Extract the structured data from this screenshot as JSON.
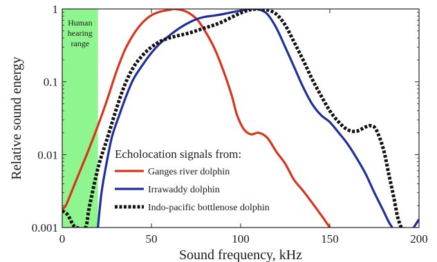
{
  "chart_data": {
    "type": "line",
    "xlabel": "Sound frequency, kHz",
    "ylabel": "Relative sound energy",
    "xlim": [
      0,
      200
    ],
    "ylim": [
      0.001,
      1
    ],
    "yscale": "log",
    "grid": false,
    "x_ticks": [
      "0",
      "50",
      "100",
      "150",
      "200"
    ],
    "y_ticks": [
      "0.001",
      "0.01",
      "0.1",
      "1"
    ],
    "legend_title": "Echolocation signals from:",
    "legend_position": "lower-left",
    "hearing_band": {
      "label": "Human hearing range",
      "x_range": [
        0,
        20
      ],
      "color": "#8ff58f"
    },
    "series": [
      {
        "name": "Ganges river dolphin",
        "color": "#d8351b",
        "style": "solid",
        "points": [
          [
            0,
            0.0018
          ],
          [
            2,
            0.002
          ],
          [
            5,
            0.003
          ],
          [
            10,
            0.006
          ],
          [
            15,
            0.012
          ],
          [
            20,
            0.025
          ],
          [
            25,
            0.055
          ],
          [
            30,
            0.13
          ],
          [
            35,
            0.27
          ],
          [
            40,
            0.45
          ],
          [
            45,
            0.65
          ],
          [
            50,
            0.82
          ],
          [
            55,
            0.92
          ],
          [
            60,
            0.97
          ],
          [
            63,
            1.0
          ],
          [
            68,
            0.95
          ],
          [
            72,
            0.85
          ],
          [
            76,
            0.7
          ],
          [
            80,
            0.5
          ],
          [
            85,
            0.3
          ],
          [
            90,
            0.15
          ],
          [
            95,
            0.065
          ],
          [
            98,
            0.035
          ],
          [
            102,
            0.022
          ],
          [
            106,
            0.019
          ],
          [
            110,
            0.02
          ],
          [
            115,
            0.017
          ],
          [
            120,
            0.011
          ],
          [
            125,
            0.0075
          ],
          [
            130,
            0.0045
          ],
          [
            135,
            0.0032
          ],
          [
            140,
            0.0022
          ],
          [
            145,
            0.0015
          ],
          [
            150,
            0.001
          ]
        ]
      },
      {
        "name": "Irrawaddy dolphin",
        "color": "#1f2f9a",
        "style": "solid",
        "points": [
          [
            20,
            0.001
          ],
          [
            22,
            0.003
          ],
          [
            25,
            0.008
          ],
          [
            28,
            0.018
          ],
          [
            32,
            0.035
          ],
          [
            36,
            0.065
          ],
          [
            40,
            0.11
          ],
          [
            45,
            0.17
          ],
          [
            50,
            0.25
          ],
          [
            55,
            0.34
          ],
          [
            60,
            0.43
          ],
          [
            65,
            0.53
          ],
          [
            70,
            0.63
          ],
          [
            75,
            0.72
          ],
          [
            80,
            0.78
          ],
          [
            85,
            0.81
          ],
          [
            90,
            0.85
          ],
          [
            95,
            0.9
          ],
          [
            100,
            0.95
          ],
          [
            105,
            1.0
          ],
          [
            108,
            1.0
          ],
          [
            111,
            0.97
          ],
          [
            115,
            0.85
          ],
          [
            120,
            0.55
          ],
          [
            125,
            0.3
          ],
          [
            130,
            0.16
          ],
          [
            135,
            0.085
          ],
          [
            140,
            0.05
          ],
          [
            145,
            0.035
          ],
          [
            150,
            0.028
          ],
          [
            155,
            0.02
          ],
          [
            160,
            0.014
          ],
          [
            165,
            0.009
          ],
          [
            170,
            0.0055
          ],
          [
            175,
            0.003
          ],
          [
            180,
            0.0017
          ],
          [
            183,
            0.0012
          ],
          [
            185,
            0.001
          ]
        ]
      },
      {
        "name": "Indo-pacific bottlenose dolphin",
        "color": "#111111",
        "style": "dotted",
        "points": [
          [
            0,
            0.0017
          ],
          [
            3,
            0.0015
          ],
          [
            6,
            0.0011
          ],
          [
            8,
            0.001
          ],
          [
            13,
            0.001
          ],
          [
            15,
            0.0018
          ],
          [
            18,
            0.004
          ],
          [
            21,
            0.008
          ],
          [
            25,
            0.016
          ],
          [
            30,
            0.04
          ],
          [
            35,
            0.09
          ],
          [
            40,
            0.16
          ],
          [
            45,
            0.23
          ],
          [
            50,
            0.3
          ],
          [
            55,
            0.36
          ],
          [
            60,
            0.4
          ],
          [
            65,
            0.43
          ],
          [
            70,
            0.46
          ],
          [
            75,
            0.5
          ],
          [
            80,
            0.55
          ],
          [
            85,
            0.6
          ],
          [
            90,
            0.67
          ],
          [
            95,
            0.77
          ],
          [
            100,
            0.88
          ],
          [
            105,
            0.97
          ],
          [
            110,
            1.0
          ],
          [
            115,
            0.97
          ],
          [
            120,
            0.85
          ],
          [
            125,
            0.6
          ],
          [
            130,
            0.35
          ],
          [
            135,
            0.2
          ],
          [
            140,
            0.11
          ],
          [
            145,
            0.065
          ],
          [
            150,
            0.04
          ],
          [
            155,
            0.028
          ],
          [
            160,
            0.022
          ],
          [
            165,
            0.021
          ],
          [
            170,
            0.024
          ],
          [
            173,
            0.025
          ],
          [
            176,
            0.022
          ],
          [
            180,
            0.012
          ],
          [
            183,
            0.0055
          ],
          [
            186,
            0.0025
          ],
          [
            188,
            0.0014
          ],
          [
            190,
            0.001
          ]
        ]
      }
    ],
    "extra_segments": [
      {
        "series": "Irrawaddy dolphin",
        "color": "#1f2f9a",
        "points": [
          [
            197,
            0.001
          ],
          [
            200,
            0.0013
          ]
        ]
      }
    ]
  }
}
